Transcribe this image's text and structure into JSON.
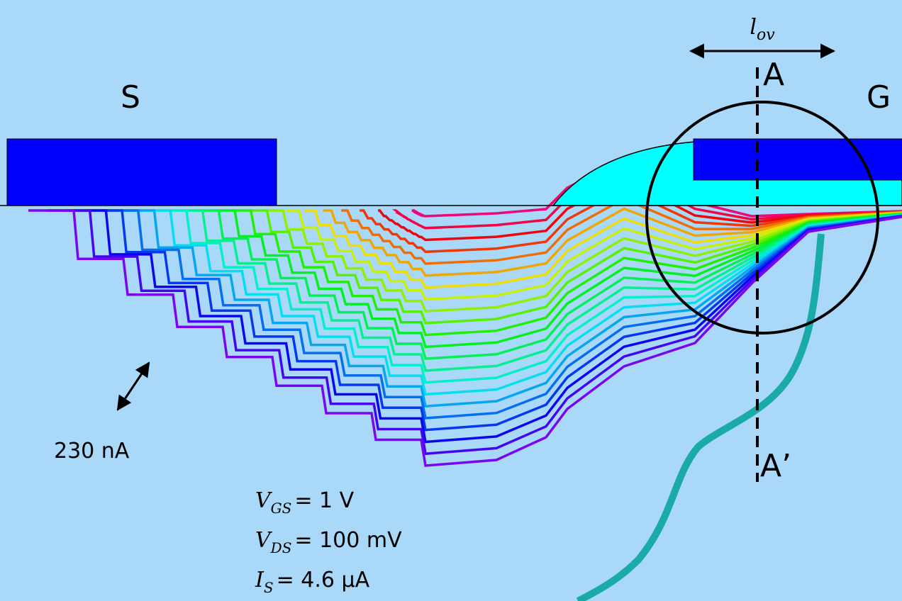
{
  "labels": {
    "source": "S",
    "gate": "G",
    "cut_top": "A",
    "cut_bottom": "A’",
    "spacing": "230 nA"
  },
  "overlap": {
    "symbol": "l",
    "subscript": "ov"
  },
  "conditions": [
    {
      "symbol": "V",
      "subscript": "GS",
      "value": "= 1 V"
    },
    {
      "symbol": "V",
      "subscript": "DS",
      "value": "= 100 mV"
    },
    {
      "symbol": "I",
      "subscript": "S",
      "value": "= 4.6 μA"
    }
  ]
}
